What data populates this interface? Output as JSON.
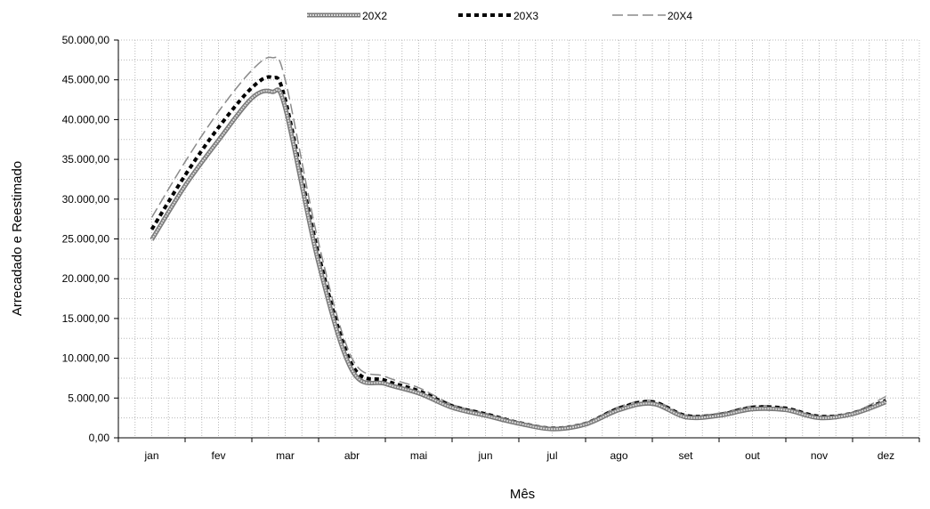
{
  "chart_data": {
    "type": "line",
    "title": "",
    "xlabel": "Mês",
    "ylabel": "Arrecadado e Reestimado",
    "categories": [
      "jan",
      "fev",
      "mar",
      "abr",
      "mai",
      "jun",
      "jul",
      "ago",
      "set",
      "out",
      "nov",
      "dez"
    ],
    "ylim": [
      0,
      50000
    ],
    "y_ticks": [
      "0,00",
      "5.000,00",
      "10.000,00",
      "15.000,00",
      "20.000,00",
      "25.000,00",
      "30.000,00",
      "35.000,00",
      "40.000,00",
      "45.000,00",
      "50.000,00"
    ],
    "grid": true,
    "legend_position": "top",
    "series": [
      {
        "name": "20X2",
        "style": "thick-light-gray",
        "color": "#9a9a9a",
        "x": [
          0,
          0.5,
          1,
          1.5,
          1.8,
          2,
          2.5,
          3,
          3.5,
          4,
          4.5,
          5,
          5.5,
          6,
          6.5,
          7,
          7.5,
          8,
          8.5,
          9,
          9.5,
          10,
          10.5,
          11
        ],
        "values": [
          24900,
          31700,
          37400,
          42700,
          43500,
          41500,
          22000,
          8500,
          6800,
          5600,
          3800,
          2800,
          1800,
          1100,
          1700,
          3500,
          4300,
          2600,
          2800,
          3600,
          3500,
          2500,
          3000,
          4500
        ]
      },
      {
        "name": "20X3",
        "style": "dotted-black",
        "color": "#000000",
        "x": [
          0,
          0.5,
          1,
          1.5,
          1.8,
          2,
          2.5,
          3,
          3.5,
          4,
          4.5,
          5,
          5.5,
          6,
          6.5,
          7,
          7.5,
          8,
          8.5,
          9,
          9.5,
          10,
          10.5,
          11
        ],
        "values": [
          26200,
          33000,
          39000,
          44000,
          45300,
          42500,
          23000,
          9200,
          7200,
          5900,
          4000,
          3000,
          1900,
          1200,
          1800,
          3700,
          4500,
          2800,
          2900,
          3800,
          3700,
          2700,
          3100,
          4700
        ]
      },
      {
        "name": "20X4",
        "style": "dashed-gray",
        "color": "#808080",
        "x": [
          0,
          0.5,
          1,
          1.5,
          1.8,
          2,
          2.5,
          3,
          3.5,
          4,
          4.5,
          5,
          5.5,
          6,
          6.5,
          7,
          7.5,
          8,
          8.5,
          9,
          9.5,
          10,
          10.5,
          11
        ],
        "values": [
          27700,
          34700,
          41000,
          46200,
          47800,
          45000,
          24500,
          10000,
          7700,
          6300,
          4200,
          3100,
          2000,
          1300,
          1900,
          3900,
          4700,
          2900,
          3100,
          4000,
          3800,
          2800,
          3200,
          5200
        ]
      }
    ]
  }
}
